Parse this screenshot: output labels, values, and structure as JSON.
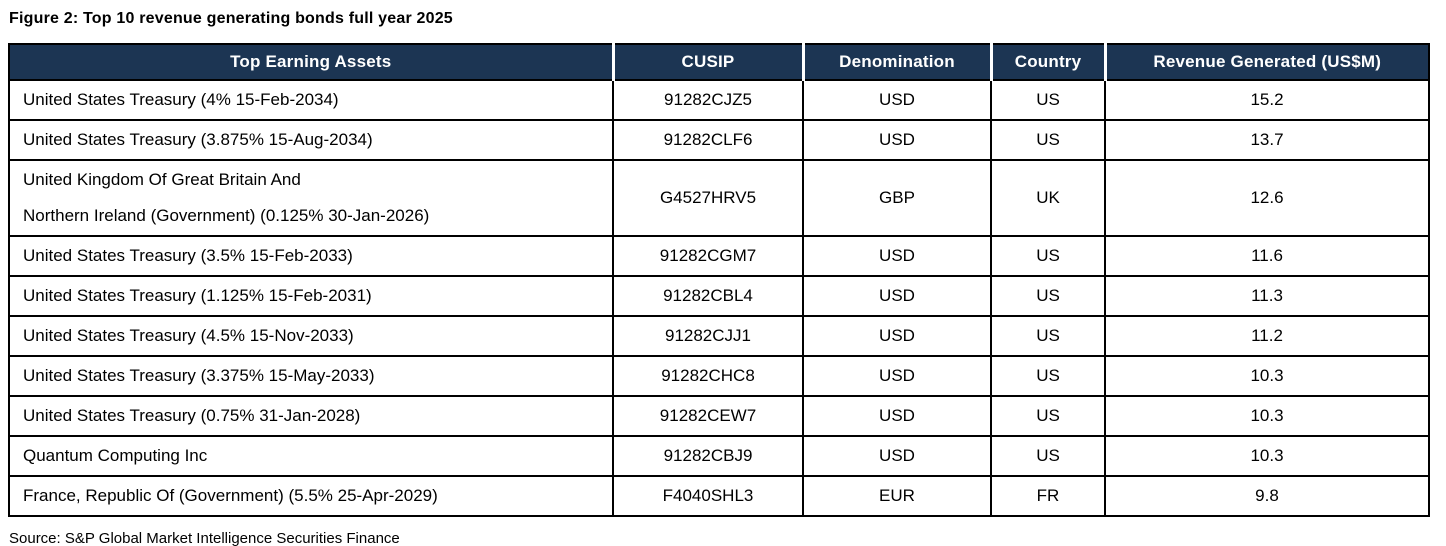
{
  "title": "Figure 2: Top 10 revenue generating bonds full year 2025",
  "source": "Source: S&P Global Market Intelligence Securities Finance",
  "colors": {
    "header_bg": "#1C3553",
    "header_text": "#FFFFFF",
    "border": "#000000",
    "body_text": "#000000"
  },
  "table": {
    "keys": [
      "asset",
      "cusip",
      "denomination",
      "country",
      "revenue"
    ],
    "columns": [
      {
        "key": "asset",
        "label": "Top Earning Assets"
      },
      {
        "key": "cusip",
        "label": "CUSIP"
      },
      {
        "key": "denomination",
        "label": "Denomination"
      },
      {
        "key": "country",
        "label": "Country"
      },
      {
        "key": "revenue",
        "label": "Revenue Generated (US$M)"
      }
    ],
    "rows": [
      {
        "asset": "United States Treasury (4% 15-Feb-2034)",
        "cusip": "91282CJZ5",
        "denomination": "USD",
        "country": "US",
        "revenue": "15.2"
      },
      {
        "asset": "United States Treasury (3.875% 15-Aug-2034)",
        "cusip": "91282CLF6",
        "denomination": "USD",
        "country": "US",
        "revenue": "13.7"
      },
      {
        "asset": "United Kingdom Of Great Britain And\nNorthern Ireland (Government) (0.125% 30-Jan-2026)",
        "cusip": "G4527HRV5",
        "denomination": "GBP",
        "country": "UK",
        "revenue": "12.6"
      },
      {
        "asset": "United States Treasury (3.5% 15-Feb-2033)",
        "cusip": "91282CGM7",
        "denomination": "USD",
        "country": "US",
        "revenue": "11.6"
      },
      {
        "asset": "United States Treasury (1.125% 15-Feb-2031)",
        "cusip": "91282CBL4",
        "denomination": "USD",
        "country": "US",
        "revenue": "11.3"
      },
      {
        "asset": "United States Treasury (4.5% 15-Nov-2033)",
        "cusip": "91282CJJ1",
        "denomination": "USD",
        "country": "US",
        "revenue": "11.2"
      },
      {
        "asset": "United States Treasury (3.375% 15-May-2033)",
        "cusip": "91282CHC8",
        "denomination": "USD",
        "country": "US",
        "revenue": "10.3"
      },
      {
        "asset": "United States Treasury (0.75% 31-Jan-2028)",
        "cusip": "91282CEW7",
        "denomination": "USD",
        "country": "US",
        "revenue": "10.3"
      },
      {
        "asset": "Quantum Computing Inc",
        "cusip": "91282CBJ9",
        "denomination": "USD",
        "country": "US",
        "revenue": "10.3"
      },
      {
        "asset": "France, Republic Of (Government) (5.5% 25-Apr-2029)",
        "cusip": "F4040SHL3",
        "denomination": "EUR",
        "country": "FR",
        "revenue": "9.8"
      }
    ]
  }
}
